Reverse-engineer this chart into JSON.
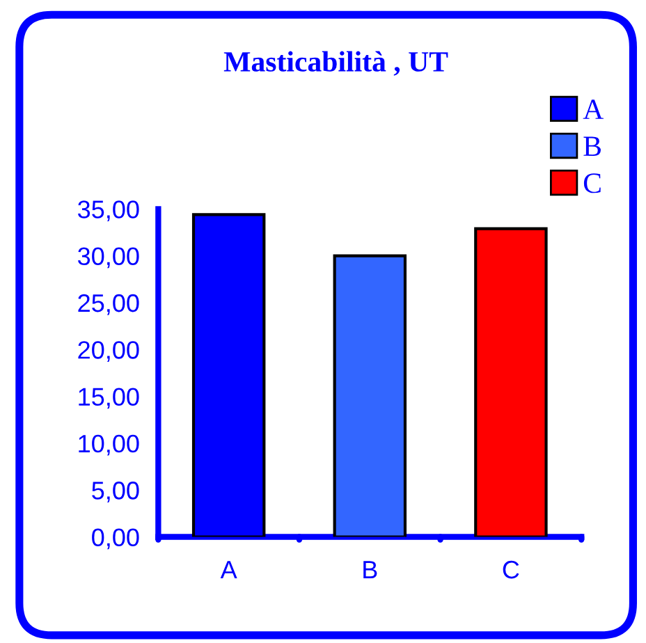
{
  "chart_data": {
    "type": "bar",
    "title": "Masticabilità , UT",
    "categories": [
      "A",
      "B",
      "C"
    ],
    "series": [
      {
        "name": "A",
        "color": "#0000ff",
        "values": [
          34.4,
          null,
          null
        ]
      },
      {
        "name": "B",
        "color": "#3366ff",
        "values": [
          null,
          30.0,
          null
        ]
      },
      {
        "name": "C",
        "color": "#ff0000",
        "values": [
          null,
          null,
          32.9
        ]
      }
    ],
    "ylim": [
      0,
      35
    ],
    "yticks": [
      {
        "value": 0,
        "label": "0,00"
      },
      {
        "value": 5,
        "label": "5,00"
      },
      {
        "value": 10,
        "label": "10,00"
      },
      {
        "value": 15,
        "label": "15,00"
      },
      {
        "value": 20,
        "label": "20,00"
      },
      {
        "value": 25,
        "label": "25,00"
      },
      {
        "value": 30,
        "label": "30,00"
      },
      {
        "value": 35,
        "label": "35,00"
      }
    ],
    "grid": false,
    "legend": "top right"
  }
}
